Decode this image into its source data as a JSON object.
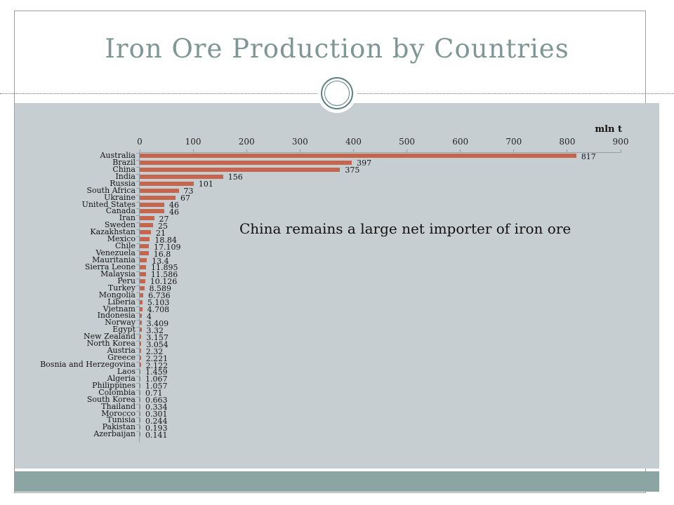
{
  "slide": {
    "title": "Iron Ore Production by Countries",
    "annotation": "China remains a large net importer of iron ore"
  },
  "colors": {
    "bar": "#c5654d",
    "chart_bg": "#c7ced2",
    "footer_band": "#8ba5a3",
    "title_text": "#7e9694",
    "ring": "#5d827f",
    "axis": "#95a1a6"
  },
  "chart_data": {
    "type": "bar",
    "orientation": "horizontal",
    "title": "Iron Ore Production by Countries",
    "unit_label": "mln t",
    "xlabel": "mln t",
    "ylabel": "",
    "xlim": [
      0,
      900
    ],
    "xticks": [
      0,
      100,
      200,
      300,
      400,
      500,
      600,
      700,
      800,
      900
    ],
    "grid": false,
    "legend": "none",
    "annotation": "China remains a large net importer of iron ore",
    "categories": [
      "Australia",
      "Brazil",
      "China",
      "India",
      "Russia",
      "South Africa",
      "Ukraine",
      "United States",
      "Canada",
      "Iran",
      "Sweden",
      "Kazakhstan",
      "Mexico",
      "Chile",
      "Venezuela",
      "Mauritania",
      "Sierra Leone",
      "Malaysia",
      "Peru",
      "Turkey",
      "Mongolia",
      "Liberia",
      "Vietnam",
      "Indonesia",
      "Norway",
      "Egypt",
      "New Zealand",
      "North Korea",
      "Austria",
      "Greece",
      "Bosnia and Herzegovina",
      "Laos",
      "Algeria",
      "Philippines",
      "Colombia",
      "South Korea",
      "Thailand",
      "Morocco",
      "Tunisia",
      "Pakistan",
      "Azerbaijan"
    ],
    "values": [
      817,
      397,
      375,
      156,
      101,
      73,
      67,
      46,
      46,
      27,
      25,
      21,
      18.84,
      17.109,
      16.8,
      13.4,
      11.895,
      11.586,
      10.126,
      8.589,
      6.736,
      5.103,
      4.708,
      4,
      3.409,
      3.32,
      3.157,
      3.054,
      2.32,
      2.221,
      2.122,
      1.459,
      1.067,
      1.057,
      0.71,
      0.663,
      0.334,
      0.301,
      0.244,
      0.193,
      0.141
    ],
    "value_labels": [
      "817",
      "397",
      "375",
      "156",
      "101",
      "73",
      "67",
      "46",
      "46",
      "27",
      "25",
      "21",
      "18.84",
      "17.109",
      "16.8",
      "13.4",
      "11.895",
      "11.586",
      "10.126",
      "8.589",
      "6.736",
      "5.103",
      "4.708",
      "4",
      "3.409",
      "3.32",
      "3.157",
      "3.054",
      "2.32",
      "2.221",
      "2.122",
      "1.459",
      "1.067",
      "1.057",
      "0.71",
      "0.663",
      "0.334",
      "0.301",
      "0.244",
      "0.193",
      "0.141"
    ]
  }
}
